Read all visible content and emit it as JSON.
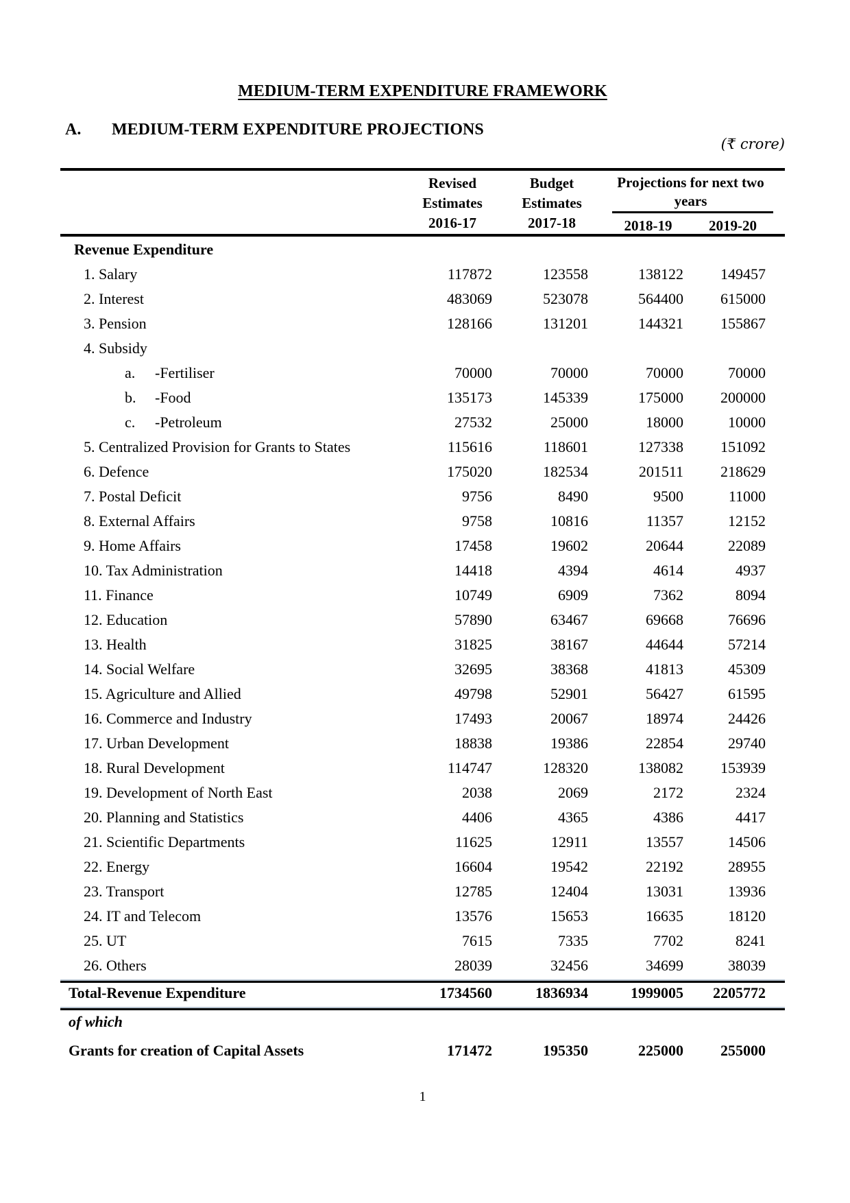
{
  "page": {
    "title": "MEDIUM-TERM EXPENDITURE FRAMEWORK",
    "section_label": "A.",
    "section_heading": "MEDIUM-TERM EXPENDITURE PROJECTIONS",
    "unit_note": "(₹ crore)",
    "page_number": "1"
  },
  "table": {
    "columns": [
      {
        "line1": "Revised",
        "line2": "Estimates",
        "year": "2016-17"
      },
      {
        "line1": "Budget",
        "line2": "Estimates",
        "year": "2017-18"
      }
    ],
    "projection_group": {
      "label": "Projections for next two years",
      "years": [
        "2018-19",
        "2019-20"
      ]
    },
    "rows": [
      {
        "label": "Revenue Expenditure",
        "level": "section",
        "values": [
          "",
          "",
          "",
          ""
        ]
      },
      {
        "label": "1. Salary",
        "level": "item",
        "values": [
          "117872",
          "123558",
          "138122",
          "149457"
        ]
      },
      {
        "label": "2. Interest",
        "level": "item",
        "values": [
          "483069",
          "523078",
          "564400",
          "615000"
        ]
      },
      {
        "label": "3. Pension",
        "level": "item",
        "values": [
          "128166",
          "131201",
          "144321",
          "155867"
        ]
      },
      {
        "label": "4. Subsidy",
        "level": "item",
        "values": [
          "",
          "",
          "",
          ""
        ]
      },
      {
        "prefix": "a.",
        "label": "-Fertiliser",
        "level": "sub",
        "values": [
          "70000",
          "70000",
          "70000",
          "70000"
        ]
      },
      {
        "prefix": "b.",
        "label": "-Food",
        "level": "sub",
        "values": [
          "135173",
          "145339",
          "175000",
          "200000"
        ]
      },
      {
        "prefix": "c.",
        "label": "-Petroleum",
        "level": "sub",
        "values": [
          "27532",
          "25000",
          "18000",
          "10000"
        ]
      },
      {
        "label": "5. Centralized Provision for Grants to States",
        "level": "item",
        "values": [
          "115616",
          "118601",
          "127338",
          "151092"
        ]
      },
      {
        "label": "6. Defence",
        "level": "item",
        "values": [
          "175020",
          "182534",
          "201511",
          "218629"
        ]
      },
      {
        "label": "7. Postal Deficit",
        "level": "item",
        "values": [
          "9756",
          "8490",
          "9500",
          "11000"
        ]
      },
      {
        "label": "8. External Affairs",
        "level": "item",
        "values": [
          "9758",
          "10816",
          "11357",
          "12152"
        ]
      },
      {
        "label": "9. Home Affairs",
        "level": "item",
        "values": [
          "17458",
          "19602",
          "20644",
          "22089"
        ]
      },
      {
        "label": "10. Tax Administration",
        "level": "item",
        "values": [
          "14418",
          "4394",
          "4614",
          "4937"
        ]
      },
      {
        "label": "11. Finance",
        "level": "item",
        "values": [
          "10749",
          "6909",
          "7362",
          "8094"
        ]
      },
      {
        "label": "12. Education",
        "level": "item",
        "values": [
          "57890",
          "63467",
          "69668",
          "76696"
        ]
      },
      {
        "label": "13. Health",
        "level": "item",
        "values": [
          "31825",
          "38167",
          "44644",
          "57214"
        ]
      },
      {
        "label": "14. Social Welfare",
        "level": "item",
        "values": [
          "32695",
          "38368",
          "41813",
          "45309"
        ]
      },
      {
        "label": "15. Agriculture and Allied",
        "level": "item",
        "values": [
          "49798",
          "52901",
          "56427",
          "61595"
        ]
      },
      {
        "label": "16. Commerce and Industry",
        "level": "item",
        "values": [
          "17493",
          "20067",
          "18974",
          "24426"
        ]
      },
      {
        "label": "17. Urban Development",
        "level": "item",
        "values": [
          "18838",
          "19386",
          "22854",
          "29740"
        ]
      },
      {
        "label": "18. Rural Development",
        "level": "item",
        "values": [
          "114747",
          "128320",
          "138082",
          "153939"
        ]
      },
      {
        "label": "19. Development of North East",
        "level": "item",
        "values": [
          "2038",
          "2069",
          "2172",
          "2324"
        ]
      },
      {
        "label": "20. Planning and Statistics",
        "level": "item",
        "values": [
          "4406",
          "4365",
          "4386",
          "4417"
        ]
      },
      {
        "label": "21. Scientific Departments",
        "level": "item",
        "values": [
          "11625",
          "12911",
          "13557",
          "14506"
        ]
      },
      {
        "label": "22. Energy",
        "level": "item",
        "values": [
          "16604",
          "19542",
          "22192",
          "28955"
        ]
      },
      {
        "label": "23. Transport",
        "level": "item",
        "values": [
          "12785",
          "12404",
          "13031",
          "13936"
        ]
      },
      {
        "label": "24. IT and Telecom",
        "level": "item",
        "values": [
          "13576",
          "15653",
          "16635",
          "18120"
        ]
      },
      {
        "label": "25. UT",
        "level": "item",
        "values": [
          "7615",
          "7335",
          "7702",
          "8241"
        ]
      },
      {
        "label": "26. Others",
        "level": "item",
        "values": [
          "28039",
          "32456",
          "34699",
          "38039"
        ]
      }
    ],
    "total_row": {
      "label": "Total-Revenue Expenditure",
      "values": [
        "1734560",
        "1836934",
        "1999005",
        "2205772"
      ]
    },
    "of_which_label": "of which",
    "grants_row": {
      "label": "Grants for creation of Capital Assets",
      "values": [
        "171472",
        "195350",
        "225000",
        "255000"
      ]
    }
  }
}
